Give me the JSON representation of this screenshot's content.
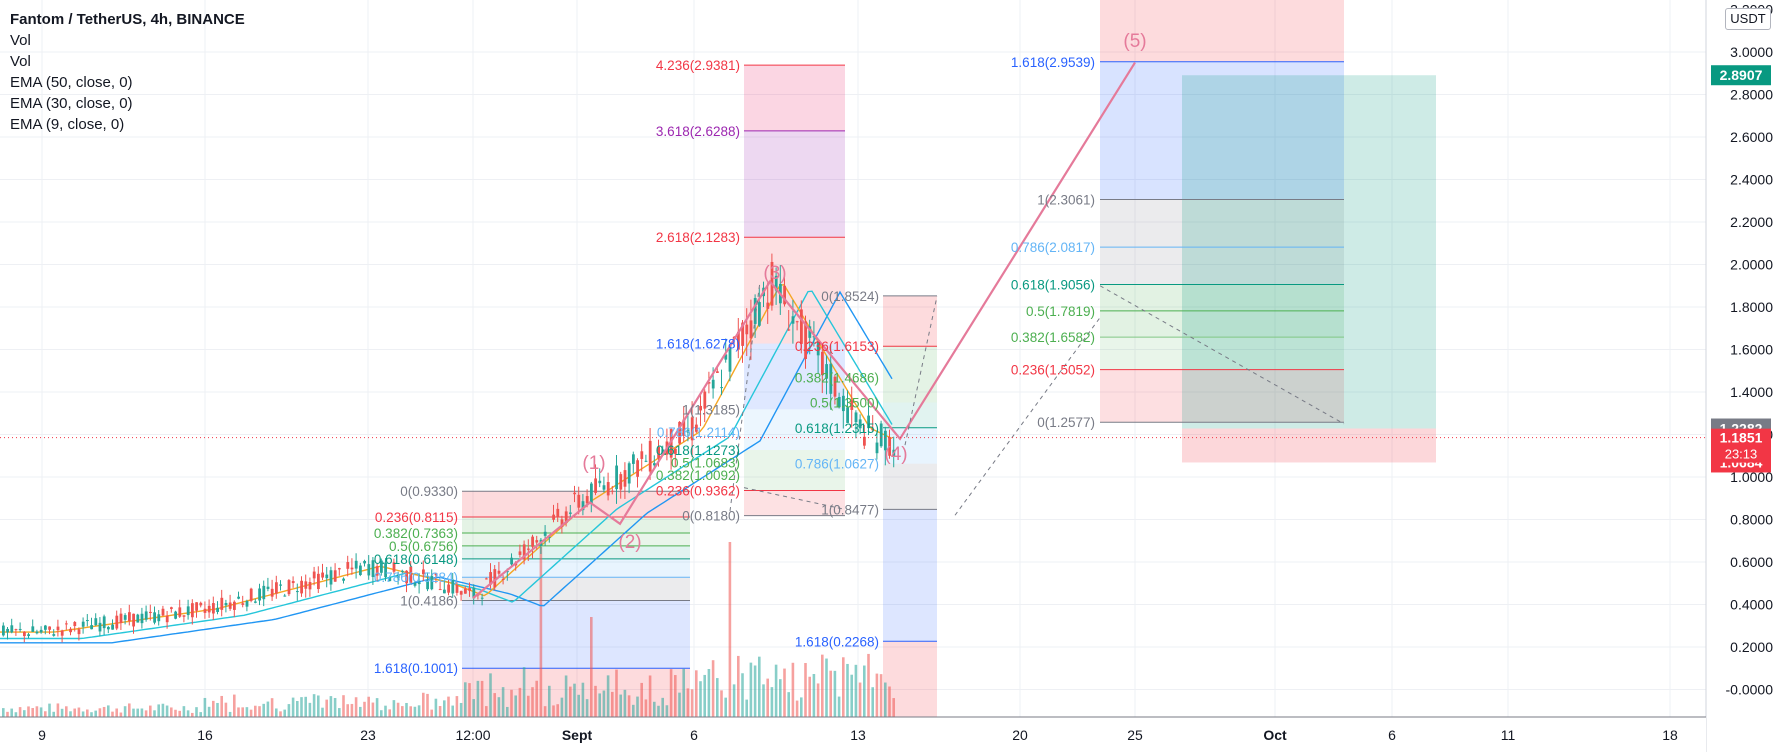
{
  "legend": {
    "title": "Fantom / TetherUS, 4h, BINANCE",
    "lines": [
      "Vol",
      "Vol",
      "EMA (50, close, 0)",
      "EMA (30, close, 0)",
      "EMA (9, close, 0)"
    ]
  },
  "currency": "USDT",
  "price_axis": {
    "ticks": [
      "3.0000",
      "2.8000",
      "2.6000",
      "2.4000",
      "2.2000",
      "2.0000",
      "1.8000",
      "1.6000",
      "1.4000",
      "1.2000",
      "1.0000",
      "0.8000",
      "0.6000",
      "0.4000",
      "0.2000",
      "-0.0000"
    ],
    "top_cut": "3.2000",
    "badges": [
      {
        "text": "2.8907",
        "color": "#089981"
      },
      {
        "text": "1.2282",
        "color": "#787b86"
      },
      {
        "text": "1.1851",
        "sub": "23:13",
        "color": "#f23645"
      },
      {
        "text": "1.0684",
        "color": "#f23645"
      }
    ]
  },
  "time_axis": [
    "9",
    "16",
    "23",
    "12:00",
    "Sept",
    "6",
    "13",
    "20",
    "25",
    "Oct",
    "6",
    "11",
    "18"
  ],
  "colors": {
    "up": "#26a69a",
    "down": "#ef5350",
    "wave": "#e57a9a",
    "ema9": "#f5a623",
    "ema30": "#26c6da",
    "ema50": "#2196f3",
    "target": "#089981",
    "stop": "#f23645",
    "current": "#f23645"
  },
  "waves": [
    "(1)",
    "(2)",
    "(3)",
    "(4)",
    "(5)"
  ],
  "fib_groups": [
    {
      "levels": [
        "0(0.9330)",
        "0.236(0.8115)",
        "0.382(0.7363)",
        "0.5(0.6756)",
        "0.618(0.6148)",
        "0.786(0.5284)",
        "1(0.4186)",
        "1.618(0.1001)"
      ]
    },
    {
      "levels": [
        "4.236(2.9381)",
        "3.618(2.6288)",
        "2.618(2.1283)",
        "1.618(1.6278)",
        "1(1.3185)",
        "0.786(1.2114)",
        "0.618(1.1273)",
        "0.5(1.0683)",
        "0.382(1.0092)",
        "0.236(0.9362)",
        "0(0.8180)"
      ]
    },
    {
      "levels": [
        "0(1.8524)",
        "0.236(1.6153)",
        "0.382(1.4686)",
        "0.5(1.3500)",
        "0.618(1.2315)",
        "0.786(1.0627)",
        "1(0.8477)",
        "1.618(0.2268)"
      ]
    },
    {
      "levels": [
        "1.618(2.9539)",
        "1(2.3061)",
        "0.786(2.0817)",
        "0.618(1.9056)",
        "0.5(1.7819)",
        "0.382(1.6582)",
        "0.236(1.5052)",
        "0(1.2577)"
      ]
    }
  ],
  "chart_data": {
    "type": "candlestick",
    "symbol": "Fantom / TetherUS",
    "interval": "4h",
    "exchange": "BINANCE",
    "ylim": [
      -0.13,
      3.2
    ],
    "last_price": 1.1851,
    "countdown": "23:13",
    "series": [
      {
        "name": "EMA (50, close, 0)",
        "color": "#2196f3"
      },
      {
        "name": "EMA (30, close, 0)",
        "color": "#26c6da"
      },
      {
        "name": "EMA (9, close, 0)",
        "color": "#f5a623"
      }
    ],
    "path": {
      "x": [
        "9",
        "12",
        "16",
        "20",
        "23",
        "12:00",
        "Sept",
        "6",
        "8",
        "13",
        "14"
      ],
      "close": [
        0.27,
        0.3,
        0.38,
        0.5,
        0.55,
        0.44,
        0.88,
        1.33,
        1.92,
        1.23,
        1.19
      ]
    },
    "long_position": {
      "entry": 1.2282,
      "target": 2.8907,
      "stop": 1.0684
    }
  }
}
